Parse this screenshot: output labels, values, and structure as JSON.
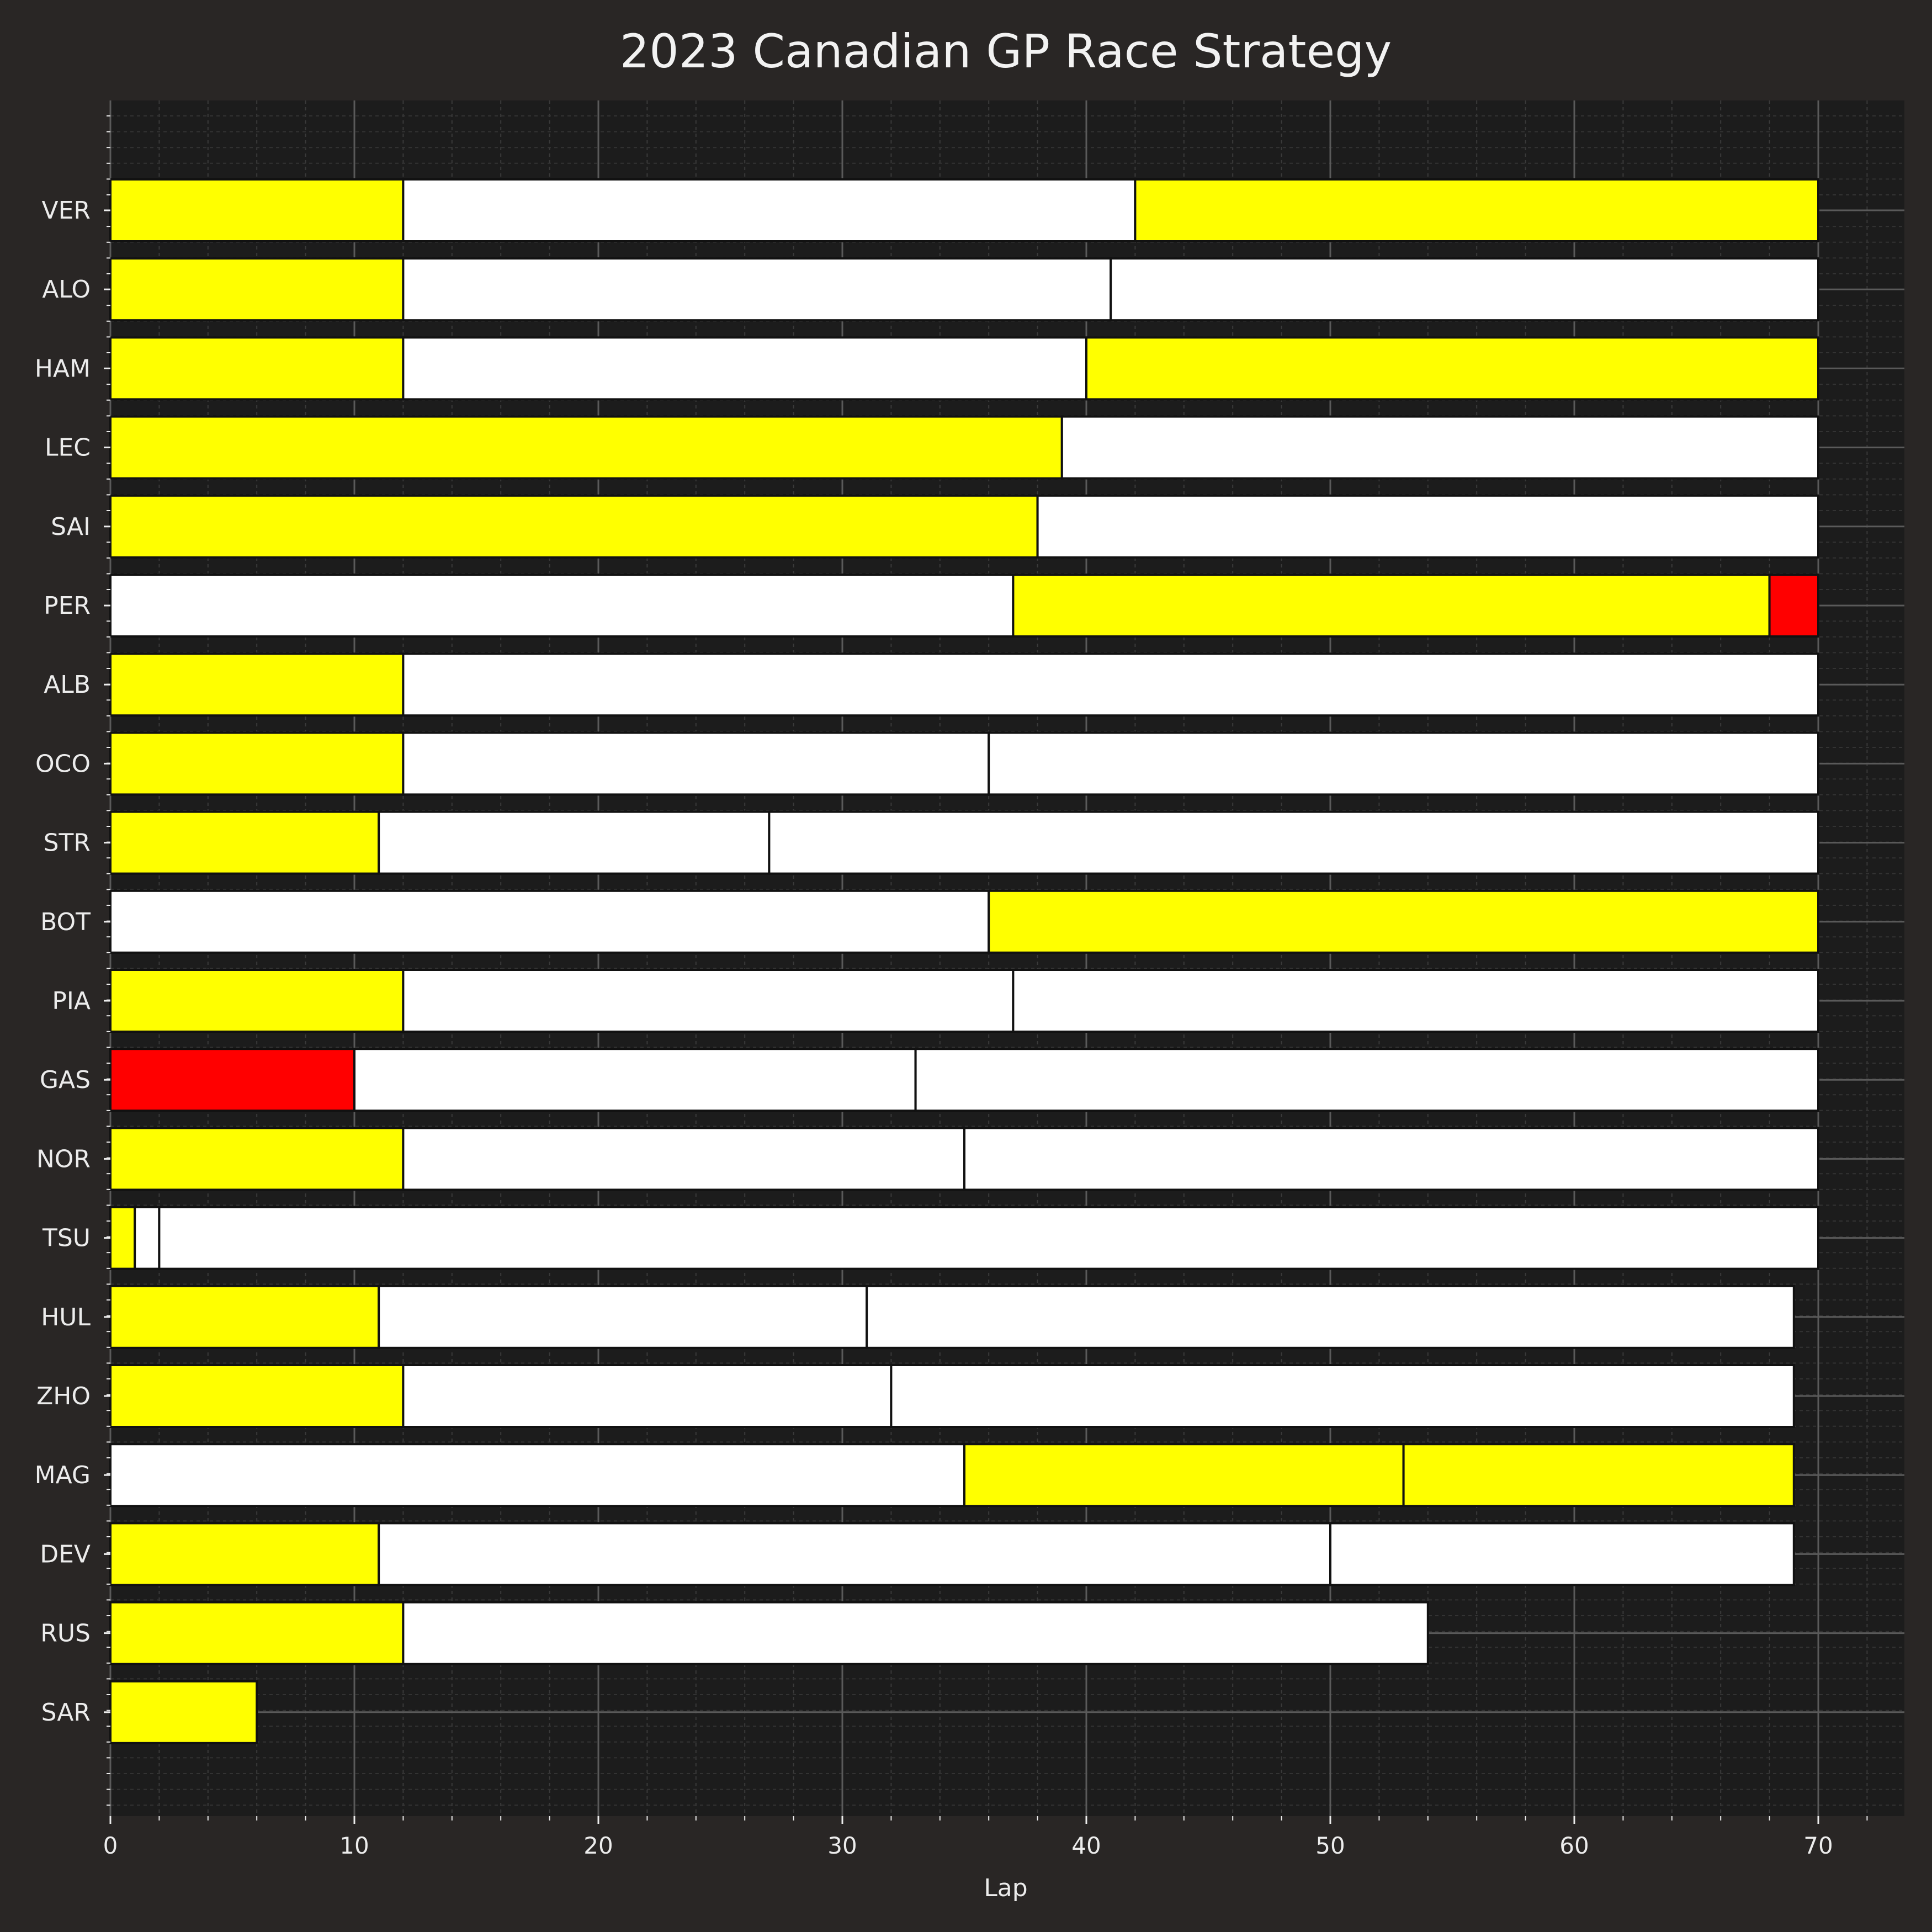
{
  "chart_data": {
    "type": "bar",
    "orientation": "horizontal-stacked",
    "title": "2023 Canadian GP Race Strategy",
    "xlabel": "Lap",
    "ylabel": "",
    "xlim": [
      0,
      73.5
    ],
    "xticks": [
      0,
      10,
      20,
      30,
      40,
      50,
      60,
      70
    ],
    "grid": true,
    "legend": "none",
    "colors": {
      "yellow": "#ffff00",
      "white": "#ffffff",
      "red": "#ff0000"
    },
    "drivers": [
      {
        "name": "VER",
        "stints": [
          {
            "start": 0,
            "end": 12,
            "color": "yellow"
          },
          {
            "start": 12,
            "end": 42,
            "color": "white"
          },
          {
            "start": 42,
            "end": 70,
            "color": "yellow"
          }
        ]
      },
      {
        "name": "ALO",
        "stints": [
          {
            "start": 0,
            "end": 12,
            "color": "yellow"
          },
          {
            "start": 12,
            "end": 41,
            "color": "white"
          },
          {
            "start": 41,
            "end": 70,
            "color": "white"
          }
        ]
      },
      {
        "name": "HAM",
        "stints": [
          {
            "start": 0,
            "end": 12,
            "color": "yellow"
          },
          {
            "start": 12,
            "end": 40,
            "color": "white"
          },
          {
            "start": 40,
            "end": 70,
            "color": "yellow"
          }
        ]
      },
      {
        "name": "LEC",
        "stints": [
          {
            "start": 0,
            "end": 39,
            "color": "yellow"
          },
          {
            "start": 39,
            "end": 70,
            "color": "white"
          }
        ]
      },
      {
        "name": "SAI",
        "stints": [
          {
            "start": 0,
            "end": 38,
            "color": "yellow"
          },
          {
            "start": 38,
            "end": 70,
            "color": "white"
          }
        ]
      },
      {
        "name": "PER",
        "stints": [
          {
            "start": 0,
            "end": 37,
            "color": "white"
          },
          {
            "start": 37,
            "end": 68,
            "color": "yellow"
          },
          {
            "start": 68,
            "end": 70,
            "color": "red"
          }
        ]
      },
      {
        "name": "ALB",
        "stints": [
          {
            "start": 0,
            "end": 12,
            "color": "yellow"
          },
          {
            "start": 12,
            "end": 70,
            "color": "white"
          }
        ]
      },
      {
        "name": "OCO",
        "stints": [
          {
            "start": 0,
            "end": 12,
            "color": "yellow"
          },
          {
            "start": 12,
            "end": 36,
            "color": "white"
          },
          {
            "start": 36,
            "end": 70,
            "color": "white"
          }
        ]
      },
      {
        "name": "STR",
        "stints": [
          {
            "start": 0,
            "end": 11,
            "color": "yellow"
          },
          {
            "start": 11,
            "end": 27,
            "color": "white"
          },
          {
            "start": 27,
            "end": 70,
            "color": "white"
          }
        ]
      },
      {
        "name": "BOT",
        "stints": [
          {
            "start": 0,
            "end": 36,
            "color": "white"
          },
          {
            "start": 36,
            "end": 70,
            "color": "yellow"
          }
        ]
      },
      {
        "name": "PIA",
        "stints": [
          {
            "start": 0,
            "end": 12,
            "color": "yellow"
          },
          {
            "start": 12,
            "end": 37,
            "color": "white"
          },
          {
            "start": 37,
            "end": 70,
            "color": "white"
          }
        ]
      },
      {
        "name": "GAS",
        "stints": [
          {
            "start": 0,
            "end": 10,
            "color": "red"
          },
          {
            "start": 10,
            "end": 33,
            "color": "white"
          },
          {
            "start": 33,
            "end": 70,
            "color": "white"
          }
        ]
      },
      {
        "name": "NOR",
        "stints": [
          {
            "start": 0,
            "end": 12,
            "color": "yellow"
          },
          {
            "start": 12,
            "end": 35,
            "color": "white"
          },
          {
            "start": 35,
            "end": 70,
            "color": "white"
          }
        ]
      },
      {
        "name": "TSU",
        "stints": [
          {
            "start": 0,
            "end": 1,
            "color": "yellow"
          },
          {
            "start": 1,
            "end": 2,
            "color": "white"
          },
          {
            "start": 2,
            "end": 70,
            "color": "white"
          }
        ]
      },
      {
        "name": "HUL",
        "stints": [
          {
            "start": 0,
            "end": 11,
            "color": "yellow"
          },
          {
            "start": 11,
            "end": 31,
            "color": "white"
          },
          {
            "start": 31,
            "end": 69,
            "color": "white"
          }
        ]
      },
      {
        "name": "ZHO",
        "stints": [
          {
            "start": 0,
            "end": 12,
            "color": "yellow"
          },
          {
            "start": 12,
            "end": 32,
            "color": "white"
          },
          {
            "start": 32,
            "end": 69,
            "color": "white"
          }
        ]
      },
      {
        "name": "MAG",
        "stints": [
          {
            "start": 0,
            "end": 35,
            "color": "white"
          },
          {
            "start": 35,
            "end": 53,
            "color": "yellow"
          },
          {
            "start": 53,
            "end": 69,
            "color": "yellow"
          }
        ]
      },
      {
        "name": "DEV",
        "stints": [
          {
            "start": 0,
            "end": 11,
            "color": "yellow"
          },
          {
            "start": 11,
            "end": 50,
            "color": "white"
          },
          {
            "start": 50,
            "end": 69,
            "color": "white"
          }
        ]
      },
      {
        "name": "RUS",
        "stints": [
          {
            "start": 0,
            "end": 12,
            "color": "yellow"
          },
          {
            "start": 12,
            "end": 54,
            "color": "white"
          }
        ]
      },
      {
        "name": "SAR",
        "stints": [
          {
            "start": 0,
            "end": 6,
            "color": "yellow"
          }
        ]
      }
    ]
  }
}
